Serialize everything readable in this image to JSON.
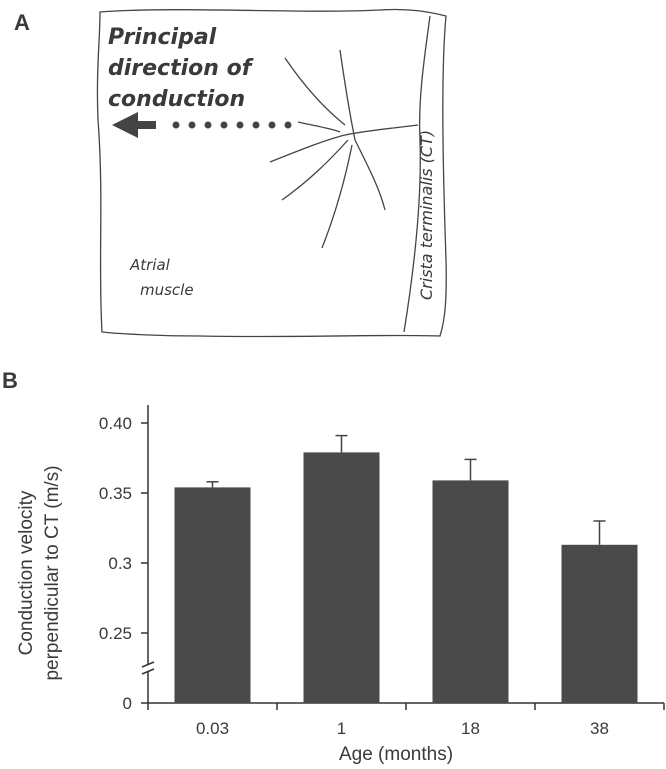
{
  "panel_a": {
    "label": "A",
    "heading_lines": [
      "Principal",
      "direction of",
      "conduction"
    ],
    "region_label_lines": [
      "Atrial",
      "muscle"
    ],
    "ct_label": "Crista terminalis (CT)"
  },
  "chart_data": {
    "type": "bar",
    "panel_label": "B",
    "categories": [
      "0.03",
      "1",
      "18",
      "38"
    ],
    "values": [
      0.354,
      0.379,
      0.359,
      0.313
    ],
    "errors": [
      0.004,
      0.012,
      0.015,
      0.017
    ],
    "color": "#4a4a4a",
    "xlabel": "Age (months)",
    "ylabel_lines": [
      "Conduction velocity",
      "perpendicular to CT (m/s)"
    ],
    "ylim": [
      0,
      0.4
    ],
    "yticks": [
      0,
      0.25,
      0.3,
      {
        "value": 0.35,
        "label": "0.35"
      },
      {
        "value": 0.4,
        "label": "0.40"
      }
    ],
    "axis_break": true
  }
}
